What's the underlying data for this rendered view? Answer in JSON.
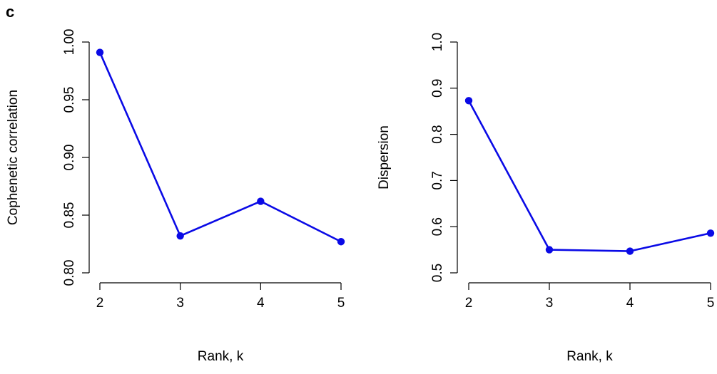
{
  "panel_label": "c",
  "chart_data": [
    {
      "type": "line",
      "x": [
        2,
        3,
        4,
        5
      ],
      "series": [
        {
          "values": [
            0.991,
            0.832,
            0.862,
            0.827
          ]
        }
      ],
      "xlabel": "Rank, k",
      "ylabel": "Cophenetic correlation",
      "xlim": [
        2,
        5
      ],
      "ylim": [
        0.8,
        1.0
      ],
      "xticks": [
        "2",
        "3",
        "4",
        "5"
      ],
      "yticks": [
        "0.80",
        "0.85",
        "0.90",
        "0.95",
        "1.00"
      ],
      "grid": false,
      "color": "#0a0ae6"
    },
    {
      "type": "line",
      "x": [
        2,
        3,
        4,
        5
      ],
      "series": [
        {
          "values": [
            0.873,
            0.55,
            0.547,
            0.586
          ]
        }
      ],
      "xlabel": "Rank, k",
      "ylabel": "Dispersion",
      "xlim": [
        2,
        5
      ],
      "ylim": [
        0.5,
        1.0
      ],
      "xticks": [
        "2",
        "3",
        "4",
        "5"
      ],
      "yticks": [
        "0.5",
        "0.6",
        "0.7",
        "0.8",
        "0.9",
        "1.0"
      ],
      "grid": false,
      "color": "#0a0ae6"
    }
  ]
}
